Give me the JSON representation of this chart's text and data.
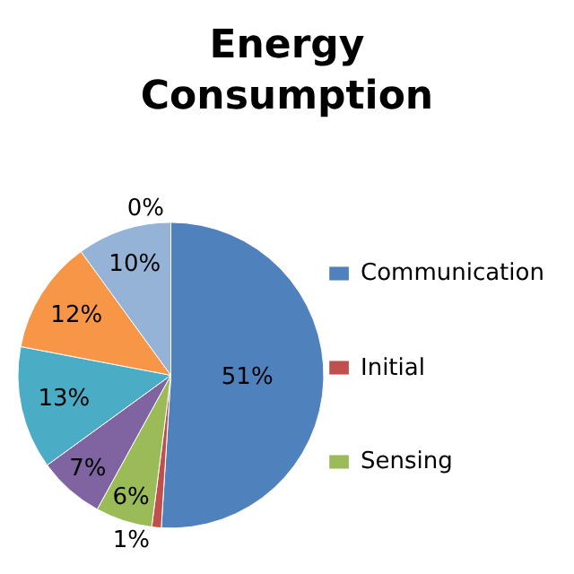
{
  "chart_data": {
    "type": "pie",
    "title": "Energy Consumption",
    "categories": [
      "Communication",
      "Initial",
      "Sensing",
      null,
      null,
      null,
      null,
      null
    ],
    "values": [
      51,
      1,
      6,
      7,
      13,
      12,
      10,
      0
    ],
    "value_labels": [
      "51%",
      "1%",
      "6%",
      "7%",
      "13%",
      "12%",
      "10%",
      "0%"
    ],
    "colors": [
      "#4f81bd",
      "#c0504d",
      "#9bbb59",
      "#8064a2",
      "#4bacc6",
      "#f79646",
      "#95b3d7",
      "#2c4d75"
    ],
    "legend": "right"
  }
}
